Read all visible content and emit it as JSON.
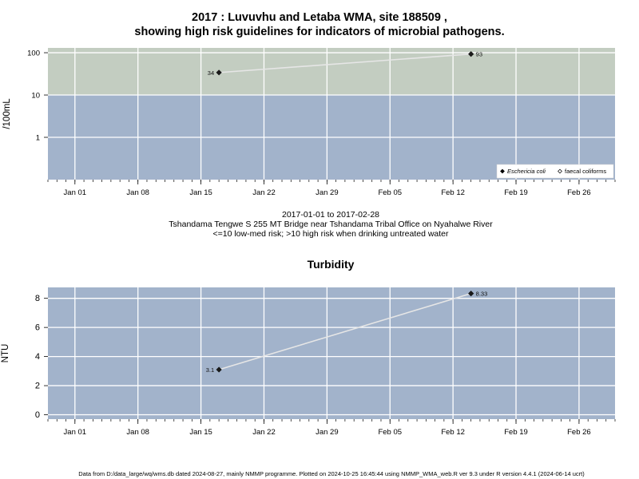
{
  "header": {
    "title_line1": "2017 : Luvuvhu and Letaba WMA, site 188509 ,",
    "title_line2": "showing high risk guidelines for indicators of microbial pathogens."
  },
  "caption": {
    "line1": "2017-01-01 to 2017-02-28",
    "line2": "Tshandama Tengwe S 255 MT Bridge near Tshandama Tribal Office on Nyahalwe River",
    "line3": "<=10 low-med risk; >10 high risk when drinking untreated water"
  },
  "turbidity_title": "Turbidity",
  "footer": "Data from D:/data_large/wq/wms.db dated 2024-08-27, mainly NMMP programme. Plotted on 2024-10-25 16:45:44 using NMMP_WMA_web.R ver 9.3 under R version 4.4.1 (2024-06-14 ucrt)",
  "colors": {
    "high_risk_band": "#c3cdc1",
    "low_risk_band": "#a2b3cb",
    "plot_bg": "#a2b3cb",
    "grid": "#ffffff",
    "series_line": "#e6e6e6",
    "point": "#1a1a1a"
  },
  "chart_data": [
    {
      "type": "scatter",
      "title": "",
      "ylabel": "/100mL",
      "y_scale": "log",
      "x_domain": [
        "2016-12-29",
        "2017-03-02"
      ],
      "ylim": [
        0.1,
        130
      ],
      "y_ticks": [
        1,
        10,
        100
      ],
      "y_tick_labels": [
        "1",
        "10",
        "100"
      ],
      "x_ticks": [
        "2017-01-01",
        "2017-01-08",
        "2017-01-15",
        "2017-01-22",
        "2017-01-29",
        "2017-02-05",
        "2017-02-12",
        "2017-02-19",
        "2017-02-26"
      ],
      "x_tick_labels": [
        "Jan 01",
        "Jan 08",
        "Jan 15",
        "Jan 22",
        "Jan 29",
        "Feb 05",
        "Feb 12",
        "Feb 19",
        "Feb 26"
      ],
      "threshold": 10,
      "grid": true,
      "legend_position": "bottom-right",
      "legend": [
        {
          "label": "Eschericia coli",
          "marker": "filled-diamond",
          "italic": true
        },
        {
          "label": "faecal coliforms",
          "marker": "open-diamond",
          "italic": false
        }
      ],
      "series": [
        {
          "name": "Eschericia coli",
          "points": [
            {
              "x": "2017-01-17",
              "y": 34,
              "label": "34",
              "label_side": "left"
            },
            {
              "x": "2017-02-14",
              "y": 93,
              "label": "93",
              "label_side": "right"
            }
          ]
        }
      ]
    },
    {
      "type": "scatter",
      "title": "Turbidity",
      "ylabel": "NTU",
      "y_scale": "linear",
      "x_domain": [
        "2016-12-29",
        "2017-03-02"
      ],
      "ylim": [
        -0.3,
        8.75
      ],
      "y_ticks": [
        0,
        2,
        4,
        6,
        8
      ],
      "y_tick_labels": [
        "0",
        "2",
        "4",
        "6",
        "8"
      ],
      "x_ticks": [
        "2017-01-01",
        "2017-01-08",
        "2017-01-15",
        "2017-01-22",
        "2017-01-29",
        "2017-02-05",
        "2017-02-12",
        "2017-02-19",
        "2017-02-26"
      ],
      "x_tick_labels": [
        "Jan 01",
        "Jan 08",
        "Jan 15",
        "Jan 22",
        "Jan 29",
        "Feb 05",
        "Feb 12",
        "Feb 19",
        "Feb 26"
      ],
      "grid": true,
      "series": [
        {
          "name": "",
          "points": [
            {
              "x": "2017-01-17",
              "y": 3.1,
              "label": "3.1",
              "label_side": "left"
            },
            {
              "x": "2017-02-14",
              "y": 8.33,
              "label": "8.33",
              "label_side": "right"
            }
          ]
        }
      ]
    }
  ]
}
